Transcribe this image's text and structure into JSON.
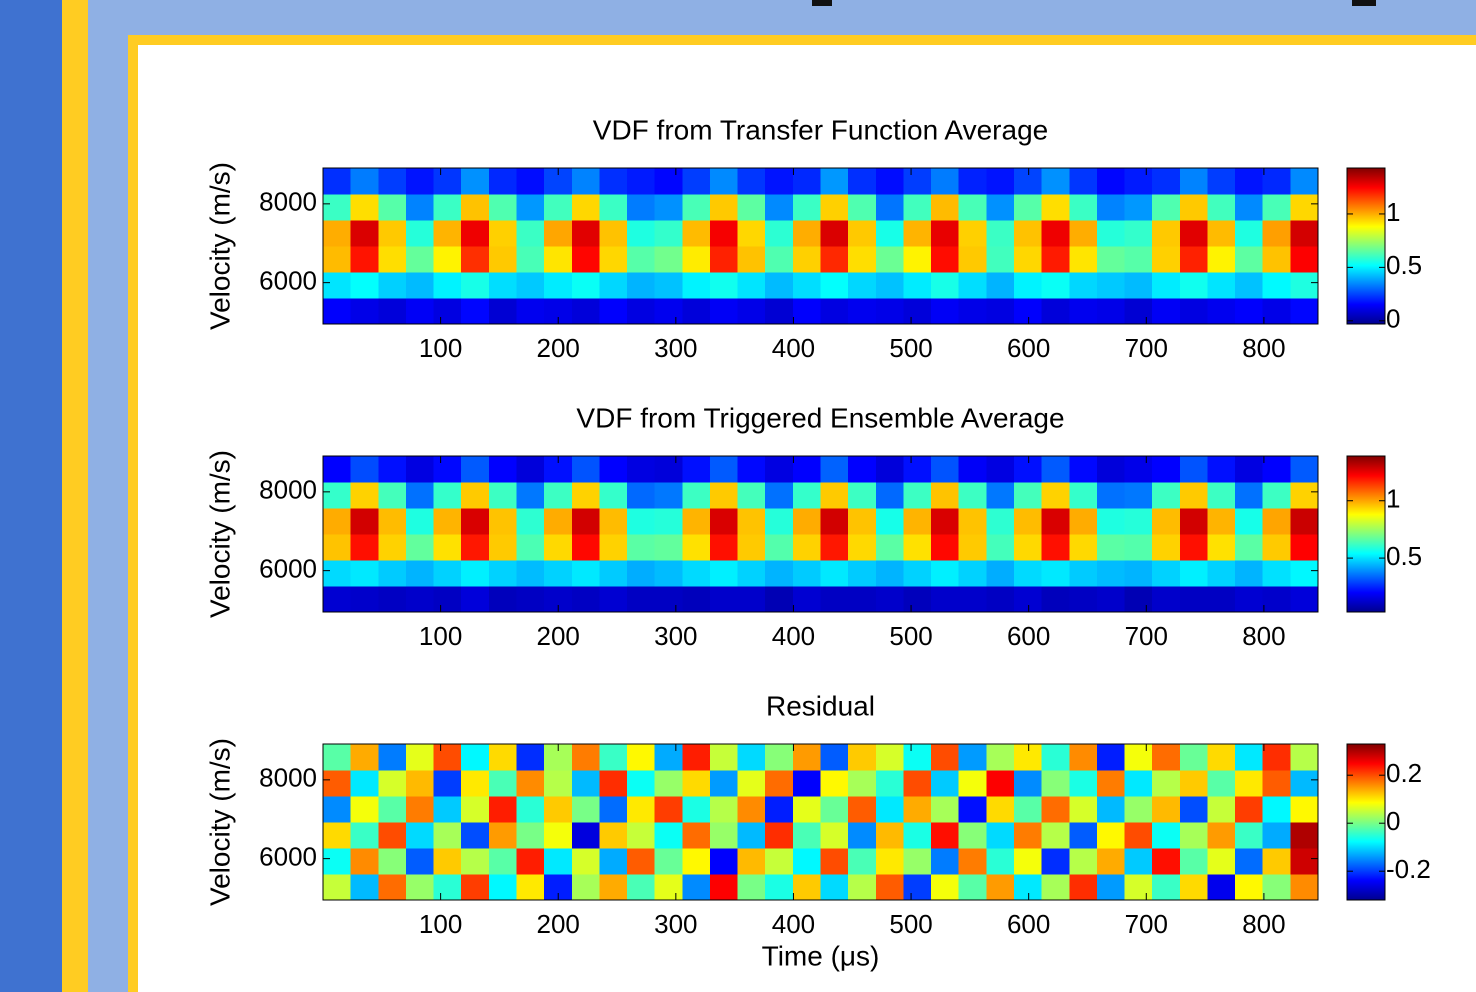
{
  "chart_data": [
    {
      "type": "heatmap",
      "title": "VDF from Transfer Function Average",
      "ylabel": "Velocity (m/s)",
      "colormap": "jet",
      "x": [
        11.75,
        35.25,
        58.75,
        82.25,
        105.75,
        129.25,
        152.75,
        176.25,
        199.75,
        223.25,
        246.75,
        270.25,
        293.75,
        317.25,
        340.75,
        364.25,
        387.75,
        411.25,
        434.75,
        458.25,
        481.75,
        505.25,
        528.75,
        552.25,
        575.75,
        599.25,
        622.75,
        646.25,
        669.75,
        693.25,
        716.75,
        740.25,
        763.75,
        787.25,
        810.75,
        834.25
      ],
      "y": [
        5280,
        5940,
        6600,
        7260,
        7920,
        8580
      ],
      "z": [
        [
          0.15,
          0.12,
          0.1,
          0.14,
          0.11,
          0.16,
          0.09,
          0.13,
          0.12,
          0.1,
          0.15,
          0.11,
          0.13,
          0.1,
          0.14,
          0.12,
          0.09,
          0.15,
          0.11,
          0.13,
          0.12,
          0.1,
          0.14,
          0.12,
          0.11,
          0.15,
          0.1,
          0.13,
          0.12,
          0.09,
          0.14,
          0.11,
          0.13,
          0.15,
          0.12,
          0.16
        ],
        [
          0.48,
          0.52,
          0.45,
          0.42,
          0.5,
          0.55,
          0.47,
          0.44,
          0.49,
          0.53,
          0.46,
          0.41,
          0.43,
          0.5,
          0.54,
          0.48,
          0.42,
          0.47,
          0.52,
          0.46,
          0.43,
          0.49,
          0.55,
          0.47,
          0.41,
          0.5,
          0.53,
          0.46,
          0.44,
          0.42,
          0.49,
          0.54,
          0.48,
          0.43,
          0.51,
          0.56
        ],
        [
          0.98,
          1.22,
          0.93,
          0.66,
          0.9,
          1.18,
          0.96,
          0.62,
          0.92,
          1.24,
          0.94,
          0.64,
          0.68,
          0.91,
          1.2,
          0.97,
          0.63,
          0.95,
          1.19,
          0.93,
          0.67,
          0.9,
          1.23,
          0.96,
          0.61,
          0.94,
          1.21,
          0.92,
          0.66,
          0.64,
          0.95,
          1.2,
          0.9,
          0.65,
          0.97,
          1.25
        ],
        [
          1.0,
          1.3,
          0.96,
          0.57,
          0.99,
          1.27,
          0.95,
          0.6,
          1.01,
          1.29,
          0.97,
          0.56,
          0.59,
          0.98,
          1.26,
          0.94,
          0.58,
          1.0,
          1.3,
          0.96,
          0.55,
          0.99,
          1.28,
          0.95,
          0.6,
          0.97,
          1.27,
          1.0,
          0.57,
          0.59,
          0.96,
          1.29,
          0.98,
          0.56,
          1.02,
          1.31
        ],
        [
          0.6,
          0.93,
          0.64,
          0.34,
          0.6,
          0.97,
          0.63,
          0.37,
          0.61,
          0.94,
          0.6,
          0.33,
          0.36,
          0.62,
          0.96,
          0.65,
          0.35,
          0.6,
          0.95,
          0.63,
          0.32,
          0.61,
          0.98,
          0.62,
          0.36,
          0.64,
          0.93,
          0.6,
          0.34,
          0.37,
          0.63,
          0.96,
          0.61,
          0.35,
          0.62,
          0.94
        ],
        [
          0.22,
          0.33,
          0.24,
          0.18,
          0.23,
          0.36,
          0.21,
          0.17,
          0.25,
          0.34,
          0.22,
          0.19,
          0.16,
          0.24,
          0.35,
          0.23,
          0.18,
          0.21,
          0.37,
          0.22,
          0.17,
          0.24,
          0.33,
          0.2,
          0.18,
          0.25,
          0.36,
          0.23,
          0.16,
          0.19,
          0.22,
          0.34,
          0.24,
          0.18,
          0.21,
          0.35
        ]
      ],
      "xlim": [
        0,
        846
      ],
      "ylim": [
        4950,
        8910
      ],
      "xticks": [
        100,
        200,
        300,
        400,
        500,
        600,
        700,
        800
      ],
      "yticks": [
        6000,
        8000
      ],
      "clim": [
        -0.03,
        1.43
      ],
      "cticks": [
        0,
        0.5,
        1
      ]
    },
    {
      "type": "heatmap",
      "title": "VDF from Triggered Ensemble Average",
      "ylabel": "Velocity (m/s)",
      "colormap": "jet",
      "x": [
        11.75,
        35.25,
        58.75,
        82.25,
        105.75,
        129.25,
        152.75,
        176.25,
        199.75,
        223.25,
        246.75,
        270.25,
        293.75,
        317.25,
        340.75,
        364.25,
        387.75,
        411.25,
        434.75,
        458.25,
        481.75,
        505.25,
        528.75,
        552.25,
        575.75,
        599.25,
        622.75,
        646.25,
        669.75,
        693.25,
        716.75,
        740.25,
        763.75,
        787.25,
        810.75,
        834.25
      ],
      "y": [
        5280,
        5940,
        6600,
        7260,
        7920,
        8580
      ],
      "z": [
        [
          0.14,
          0.13,
          0.12,
          0.13,
          0.12,
          0.15,
          0.11,
          0.12,
          0.13,
          0.12,
          0.14,
          0.12,
          0.12,
          0.11,
          0.13,
          0.13,
          0.1,
          0.14,
          0.12,
          0.12,
          0.13,
          0.11,
          0.13,
          0.13,
          0.12,
          0.14,
          0.11,
          0.12,
          0.13,
          0.1,
          0.13,
          0.12,
          0.12,
          0.14,
          0.13,
          0.15
        ],
        [
          0.49,
          0.51,
          0.47,
          0.44,
          0.48,
          0.52,
          0.48,
          0.45,
          0.48,
          0.51,
          0.47,
          0.43,
          0.45,
          0.49,
          0.52,
          0.48,
          0.44,
          0.47,
          0.51,
          0.47,
          0.44,
          0.48,
          0.52,
          0.48,
          0.43,
          0.49,
          0.51,
          0.47,
          0.45,
          0.44,
          0.48,
          0.52,
          0.48,
          0.44,
          0.5,
          0.53
        ],
        [
          0.96,
          1.2,
          0.94,
          0.67,
          0.92,
          1.19,
          0.95,
          0.64,
          0.93,
          1.21,
          0.94,
          0.66,
          0.67,
          0.92,
          1.2,
          0.95,
          0.65,
          0.94,
          1.19,
          0.93,
          0.66,
          0.92,
          1.21,
          0.95,
          0.63,
          0.93,
          1.2,
          0.93,
          0.66,
          0.65,
          0.94,
          1.2,
          0.92,
          0.66,
          0.95,
          1.22
        ],
        [
          0.99,
          1.28,
          0.97,
          0.58,
          0.98,
          1.27,
          0.96,
          0.6,
          0.99,
          1.28,
          0.97,
          0.58,
          0.59,
          0.98,
          1.27,
          0.96,
          0.59,
          0.99,
          1.28,
          0.96,
          0.57,
          0.98,
          1.27,
          0.96,
          0.6,
          0.97,
          1.27,
          0.99,
          0.58,
          0.59,
          0.97,
          1.28,
          0.98,
          0.57,
          1.0,
          1.29
        ],
        [
          0.61,
          0.94,
          0.63,
          0.35,
          0.61,
          0.95,
          0.62,
          0.36,
          0.62,
          0.94,
          0.61,
          0.34,
          0.36,
          0.62,
          0.95,
          0.63,
          0.35,
          0.61,
          0.95,
          0.62,
          0.34,
          0.62,
          0.96,
          0.62,
          0.36,
          0.63,
          0.94,
          0.61,
          0.35,
          0.36,
          0.62,
          0.95,
          0.62,
          0.35,
          0.62,
          0.94
        ],
        [
          0.2,
          0.3,
          0.22,
          0.16,
          0.21,
          0.32,
          0.2,
          0.15,
          0.22,
          0.31,
          0.2,
          0.16,
          0.15,
          0.22,
          0.32,
          0.21,
          0.16,
          0.2,
          0.33,
          0.2,
          0.15,
          0.22,
          0.31,
          0.19,
          0.16,
          0.22,
          0.32,
          0.21,
          0.15,
          0.17,
          0.2,
          0.31,
          0.22,
          0.16,
          0.2,
          0.32
        ]
      ],
      "xlim": [
        0,
        846
      ],
      "ylim": [
        4950,
        8910
      ],
      "xticks": [
        100,
        200,
        300,
        400,
        500,
        600,
        700,
        800
      ],
      "yticks": [
        6000,
        8000
      ],
      "clim": [
        0.03,
        1.39
      ],
      "cticks": [
        0.5,
        1
      ]
    },
    {
      "type": "heatmap",
      "title": "Residual",
      "xlabel": "Time (μs)",
      "ylabel": "Velocity (m/s)",
      "colormap": "jet",
      "x": [
        11.75,
        35.25,
        58.75,
        82.25,
        105.75,
        129.25,
        152.75,
        176.25,
        199.75,
        223.25,
        246.75,
        270.25,
        293.75,
        317.25,
        340.75,
        364.25,
        387.75,
        411.25,
        434.75,
        458.25,
        481.75,
        505.25,
        528.75,
        552.25,
        575.75,
        599.25,
        622.75,
        646.25,
        669.75,
        693.25,
        716.75,
        740.25,
        763.75,
        787.25,
        810.75,
        834.25
      ],
      "y": [
        5280,
        5940,
        6600,
        7260,
        7920,
        8580
      ],
      "z": [
        [
          0.05,
          -0.12,
          0.18,
          0.02,
          -0.05,
          0.21,
          -0.08,
          0.1,
          -0.22,
          0.03,
          0.14,
          -0.03,
          0.07,
          -0.15,
          0.25,
          0.0,
          -0.06,
          0.12,
          -0.1,
          0.04,
          0.19,
          -0.2,
          0.08,
          -0.02,
          0.15,
          -0.09,
          0.03,
          0.22,
          -0.14,
          0.06,
          -0.04,
          0.11,
          -0.25,
          0.09,
          0.01,
          0.16
        ],
        [
          -0.07,
          0.16,
          0.01,
          -0.18,
          0.12,
          0.04,
          -0.02,
          0.23,
          -0.09,
          0.06,
          -0.13,
          0.19,
          -0.01,
          0.09,
          -0.24,
          0.13,
          0.05,
          -0.08,
          0.2,
          -0.03,
          0.1,
          0.02,
          -0.16,
          0.17,
          -0.05,
          0.08,
          -0.21,
          0.04,
          0.14,
          -0.11,
          0.24,
          -0.02,
          0.07,
          -0.17,
          0.12,
          0.28
        ],
        [
          0.11,
          -0.04,
          0.2,
          -0.1,
          0.03,
          -0.19,
          0.15,
          0.0,
          0.08,
          -0.26,
          0.12,
          0.05,
          -0.07,
          0.18,
          0.02,
          -0.12,
          0.22,
          -0.03,
          0.06,
          -0.15,
          0.13,
          -0.06,
          0.24,
          0.01,
          -0.1,
          0.17,
          0.04,
          -0.18,
          0.09,
          0.2,
          -0.07,
          0.03,
          0.15,
          -0.04,
          -0.13,
          0.3
        ],
        [
          -0.15,
          0.08,
          -0.02,
          0.17,
          -0.11,
          0.06,
          0.23,
          -0.05,
          0.12,
          0.0,
          -0.17,
          0.1,
          0.21,
          -0.06,
          0.04,
          0.16,
          -0.22,
          0.07,
          -0.01,
          0.19,
          -0.09,
          0.14,
          0.03,
          -0.23,
          0.11,
          -0.02,
          0.18,
          0.06,
          -0.12,
          0.02,
          0.13,
          -0.19,
          0.05,
          0.21,
          -0.08,
          0.09
        ],
        [
          0.19,
          -0.09,
          0.06,
          0.13,
          -0.2,
          0.1,
          -0.03,
          0.16,
          0.04,
          -0.12,
          0.22,
          -0.07,
          0.02,
          0.11,
          -0.14,
          0.07,
          0.18,
          -0.24,
          0.09,
          0.03,
          -0.05,
          0.2,
          -0.11,
          0.08,
          0.25,
          -0.15,
          0.01,
          -0.06,
          0.17,
          -0.09,
          0.04,
          0.12,
          -0.02,
          0.1,
          0.19,
          -0.12
        ],
        [
          -0.02,
          0.14,
          -0.16,
          0.07,
          0.2,
          -0.08,
          0.11,
          -0.21,
          0.03,
          0.17,
          -0.04,
          0.09,
          -0.13,
          0.23,
          0.05,
          -0.1,
          0.01,
          0.15,
          -0.18,
          0.12,
          0.06,
          -0.07,
          0.2,
          -0.14,
          0.03,
          0.1,
          -0.05,
          0.16,
          -0.22,
          0.08,
          0.18,
          -0.01,
          0.11,
          -0.09,
          0.22,
          0.04
        ]
      ],
      "xlim": [
        0,
        846
      ],
      "ylim": [
        4950,
        8910
      ],
      "xticks": [
        100,
        200,
        300,
        400,
        500,
        600,
        700,
        800
      ],
      "yticks": [
        6000,
        8000
      ],
      "clim": [
        -0.32,
        0.33
      ],
      "cticks": [
        -0.2,
        0,
        0.2
      ]
    }
  ]
}
